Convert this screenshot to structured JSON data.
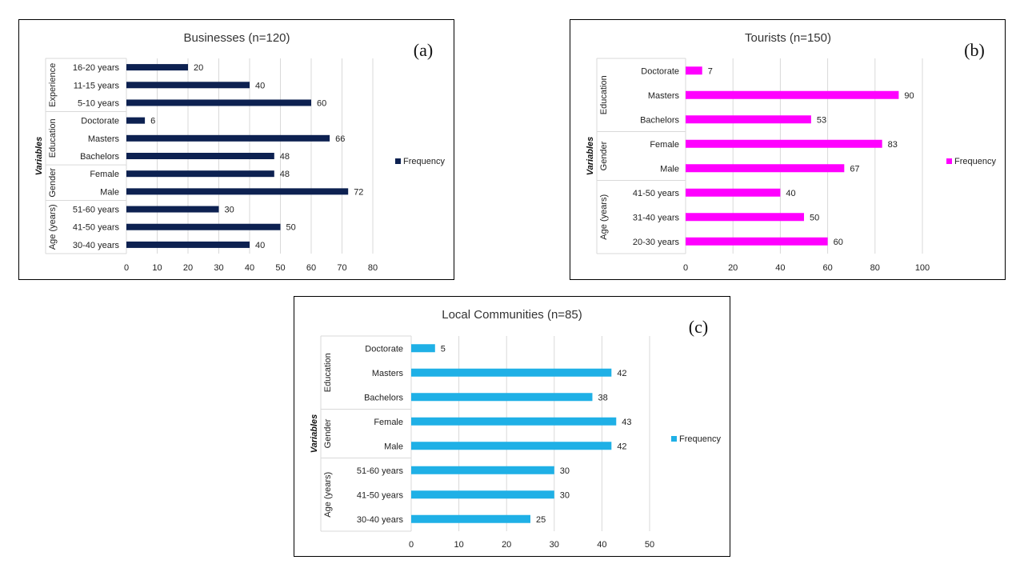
{
  "chart_data": [
    {
      "type": "bar",
      "title": "Businesses (n=120)",
      "panel_label": "(a)",
      "ylabel": "Variables",
      "color": "#0d2151",
      "xlim": [
        0,
        80
      ],
      "xticks": [
        0,
        10,
        20,
        30,
        40,
        50,
        60,
        70,
        80
      ],
      "legend": {
        "label": "Frequency",
        "position": "right"
      },
      "groups": [
        {
          "name": "Experience",
          "items": [
            {
              "label": "16-20 years",
              "value": 20
            },
            {
              "label": "11-15 years",
              "value": 40
            },
            {
              "label": "5-10 years",
              "value": 60
            }
          ]
        },
        {
          "name": "Education",
          "items": [
            {
              "label": "Doctorate",
              "value": 6
            },
            {
              "label": "Masters",
              "value": 66
            },
            {
              "label": "Bachelors",
              "value": 48
            }
          ]
        },
        {
          "name": "Gender",
          "items": [
            {
              "label": "Female",
              "value": 48
            },
            {
              "label": "Male",
              "value": 72
            }
          ]
        },
        {
          "name": "Age (years)",
          "items": [
            {
              "label": "51-60 years",
              "value": 30
            },
            {
              "label": "41-50 years",
              "value": 50
            },
            {
              "label": "30-40 years",
              "value": 40
            }
          ]
        }
      ]
    },
    {
      "type": "bar",
      "title": "Tourists (n=150)",
      "panel_label": "(b)",
      "ylabel": "Variables",
      "color": "#ff00ff",
      "xlim": [
        0,
        100
      ],
      "xticks": [
        0,
        20,
        40,
        60,
        80,
        100
      ],
      "legend": {
        "label": "Frequency",
        "position": "right"
      },
      "groups": [
        {
          "name": "Education",
          "items": [
            {
              "label": "Doctorate",
              "value": 7
            },
            {
              "label": "Masters",
              "value": 90
            },
            {
              "label": "Bachelors",
              "value": 53
            }
          ]
        },
        {
          "name": "Gender",
          "items": [
            {
              "label": "Female",
              "value": 83
            },
            {
              "label": "Male",
              "value": 67
            }
          ]
        },
        {
          "name": "Age (years)",
          "items": [
            {
              "label": "41-50 years",
              "value": 40
            },
            {
              "label": "31-40 years",
              "value": 50
            },
            {
              "label": "20-30 years",
              "value": 60
            }
          ]
        }
      ]
    },
    {
      "type": "bar",
      "title": "Local Communities (n=85)",
      "panel_label": "(c)",
      "ylabel": "Variables",
      "color": "#1fb0e6",
      "xlim": [
        0,
        50
      ],
      "xticks": [
        0,
        10,
        20,
        30,
        40,
        50
      ],
      "legend": {
        "label": "Frequency",
        "position": "right"
      },
      "groups": [
        {
          "name": "Education",
          "items": [
            {
              "label": "Doctorate",
              "value": 5
            },
            {
              "label": "Masters",
              "value": 42
            },
            {
              "label": "Bachelors",
              "value": 38
            }
          ]
        },
        {
          "name": "Gender",
          "items": [
            {
              "label": "Female",
              "value": 43
            },
            {
              "label": "Male",
              "value": 42
            }
          ]
        },
        {
          "name": "Age (years)",
          "items": [
            {
              "label": "51-60 years",
              "value": 30
            },
            {
              "label": "41-50 years",
              "value": 30
            },
            {
              "label": "30-40 years",
              "value": 25
            }
          ]
        }
      ]
    }
  ]
}
